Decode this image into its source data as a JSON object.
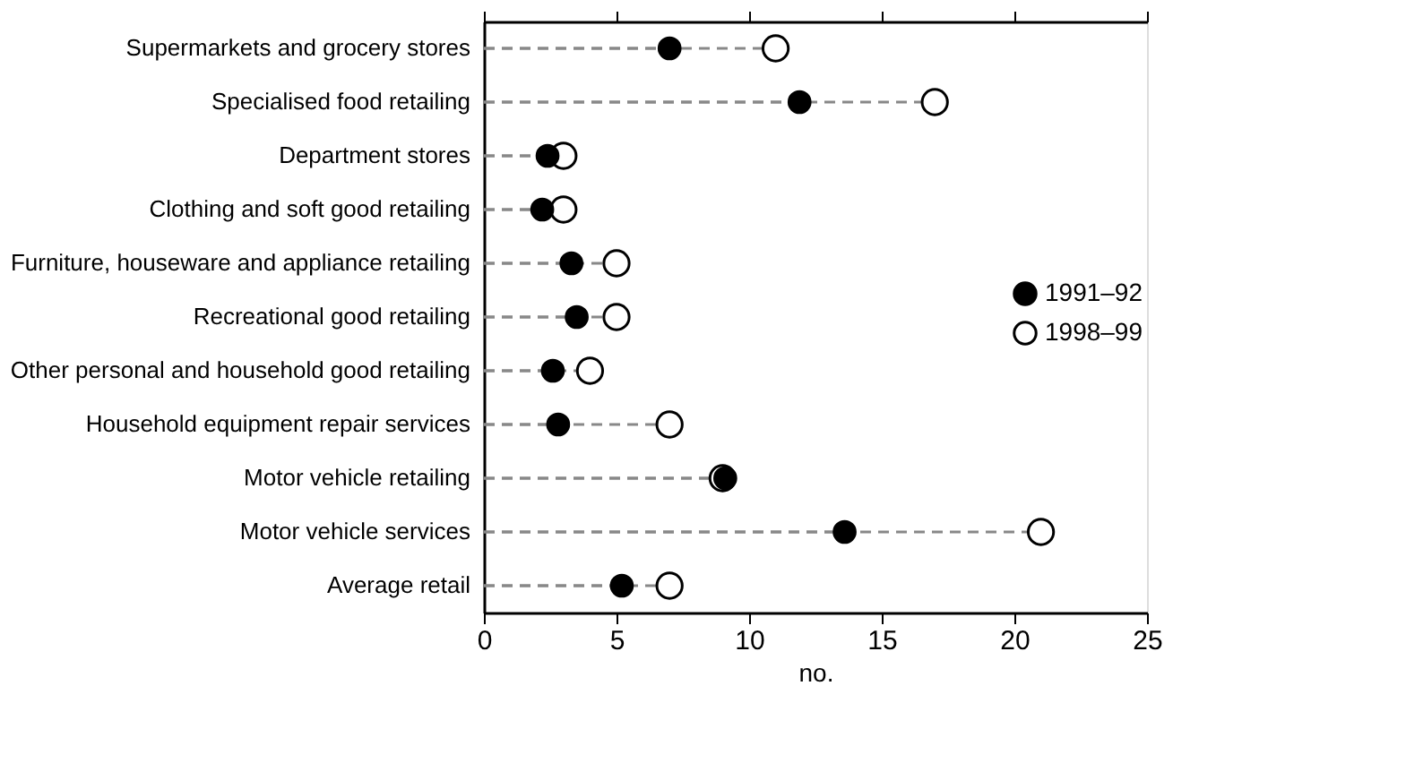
{
  "chart_data": {
    "type": "lollipop",
    "xlabel": "no.",
    "categories": [
      "Supermarkets and grocery stores",
      "Specialised food retailing",
      "Department stores",
      "Clothing and soft good retailing",
      "Furniture, houseware and appliance retailing",
      "Recreational good retailing",
      "Other personal and household good retailing",
      "Household equipment repair services",
      "Motor vehicle retailing",
      "Motor vehicle services",
      "Average retail"
    ],
    "series": [
      {
        "name": "1991–92",
        "color": "#000000",
        "values": [
          7.0,
          11.9,
          2.4,
          2.2,
          3.3,
          3.5,
          2.6,
          2.8,
          9.1,
          13.6,
          5.2
        ]
      },
      {
        "name": "1998–99",
        "color": "#ffffff",
        "values": [
          11.0,
          17.0,
          3.0,
          3.0,
          5.0,
          5.0,
          4.0,
          7.0,
          9.0,
          21.0,
          7.0
        ]
      }
    ],
    "xlim": [
      0,
      25
    ],
    "xticks": [
      0,
      5,
      10,
      15,
      20,
      25
    ],
    "orientation": "horizontal",
    "line_style": "dashed",
    "grid": false,
    "legend": "right",
    "marker": "circle"
  }
}
